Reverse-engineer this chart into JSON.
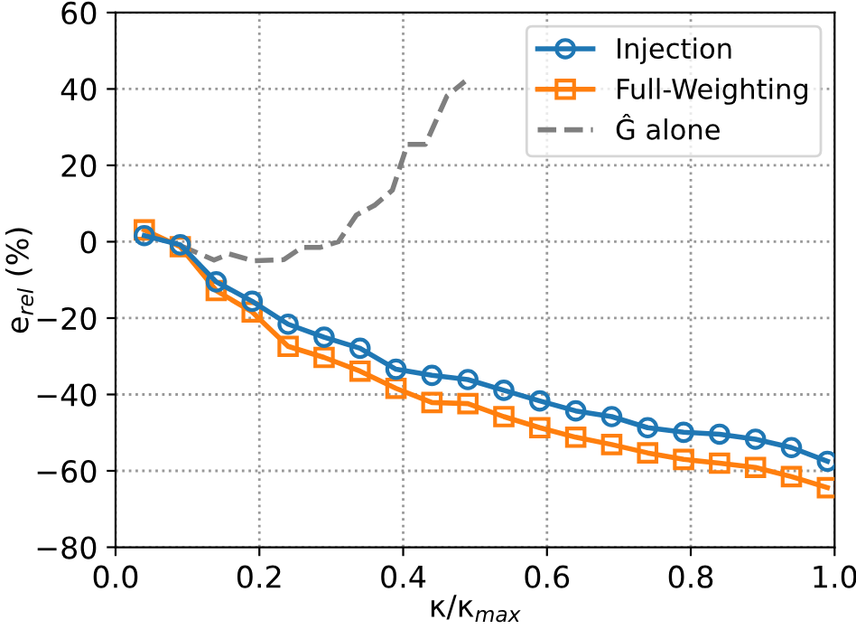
{
  "chart_data": {
    "type": "line",
    "xlabel": "κ/κ$_{max}$",
    "ylabel": "e$_{rel}$ (%)",
    "xlim": [
      0,
      1
    ],
    "xticks": [
      {
        "value": 0,
        "label": "0.0"
      },
      0.2,
      0.4,
      0.6,
      0.8,
      {
        "value": 1,
        "label": "1.0"
      }
    ],
    "ylim": [
      -80,
      60
    ],
    "yticks": [
      -80,
      -60,
      -40,
      -20,
      0,
      20,
      40,
      60
    ],
    "grid": true,
    "legend": "top right",
    "series": [
      {
        "name": "Injection",
        "color": "#1f77b4",
        "marker": "circle",
        "line_style": "solid",
        "x": [
          0.04,
          0.09,
          0.14,
          0.19,
          0.24,
          0.29,
          0.34,
          0.39,
          0.44,
          0.49,
          0.54,
          0.59,
          0.64,
          0.69,
          0.74,
          0.79,
          0.84,
          0.89,
          0.94,
          0.99
        ],
        "values": [
          1.6,
          -0.8,
          -10.5,
          -15.6,
          -21.6,
          -25,
          -27.9,
          -33.4,
          -35,
          -36.1,
          -38.9,
          -41.7,
          -44.3,
          -45.8,
          -48.7,
          -49.9,
          -50.4,
          -51.7,
          -53.9,
          -57.5
        ]
      },
      {
        "name": "Full-Weighting",
        "color": "#ff7f0e",
        "marker": "square",
        "line_style": "solid",
        "x": [
          0.04,
          0.09,
          0.14,
          0.19,
          0.24,
          0.29,
          0.34,
          0.39,
          0.44,
          0.49,
          0.54,
          0.59,
          0.64,
          0.69,
          0.74,
          0.79,
          0.84,
          0.89,
          0.94,
          0.99
        ],
        "values": [
          3.1,
          -1.3,
          -12.8,
          -18.4,
          -27.4,
          -30.3,
          -33.9,
          -38.4,
          -42.1,
          -42.4,
          -45.8,
          -48.7,
          -51.2,
          -53.1,
          -55.3,
          -57,
          -58,
          -59.1,
          -61.5,
          -64.4
        ]
      },
      {
        "name": "Ĝ alone",
        "color": "#7f7f7f",
        "marker": "none",
        "line_style": "dashed",
        "x": [
          0.09,
          0.137,
          0.158,
          0.192,
          0.234,
          0.259,
          0.284,
          0.31,
          0.335,
          0.36,
          0.385,
          0.406,
          0.431,
          0.461,
          0.486
        ],
        "values": [
          -1,
          -4.8,
          -3.2,
          -5,
          -4.7,
          -1.5,
          -1.5,
          0,
          7,
          9.5,
          13.5,
          25.5,
          25.5,
          38.2,
          42
        ]
      }
    ]
  }
}
